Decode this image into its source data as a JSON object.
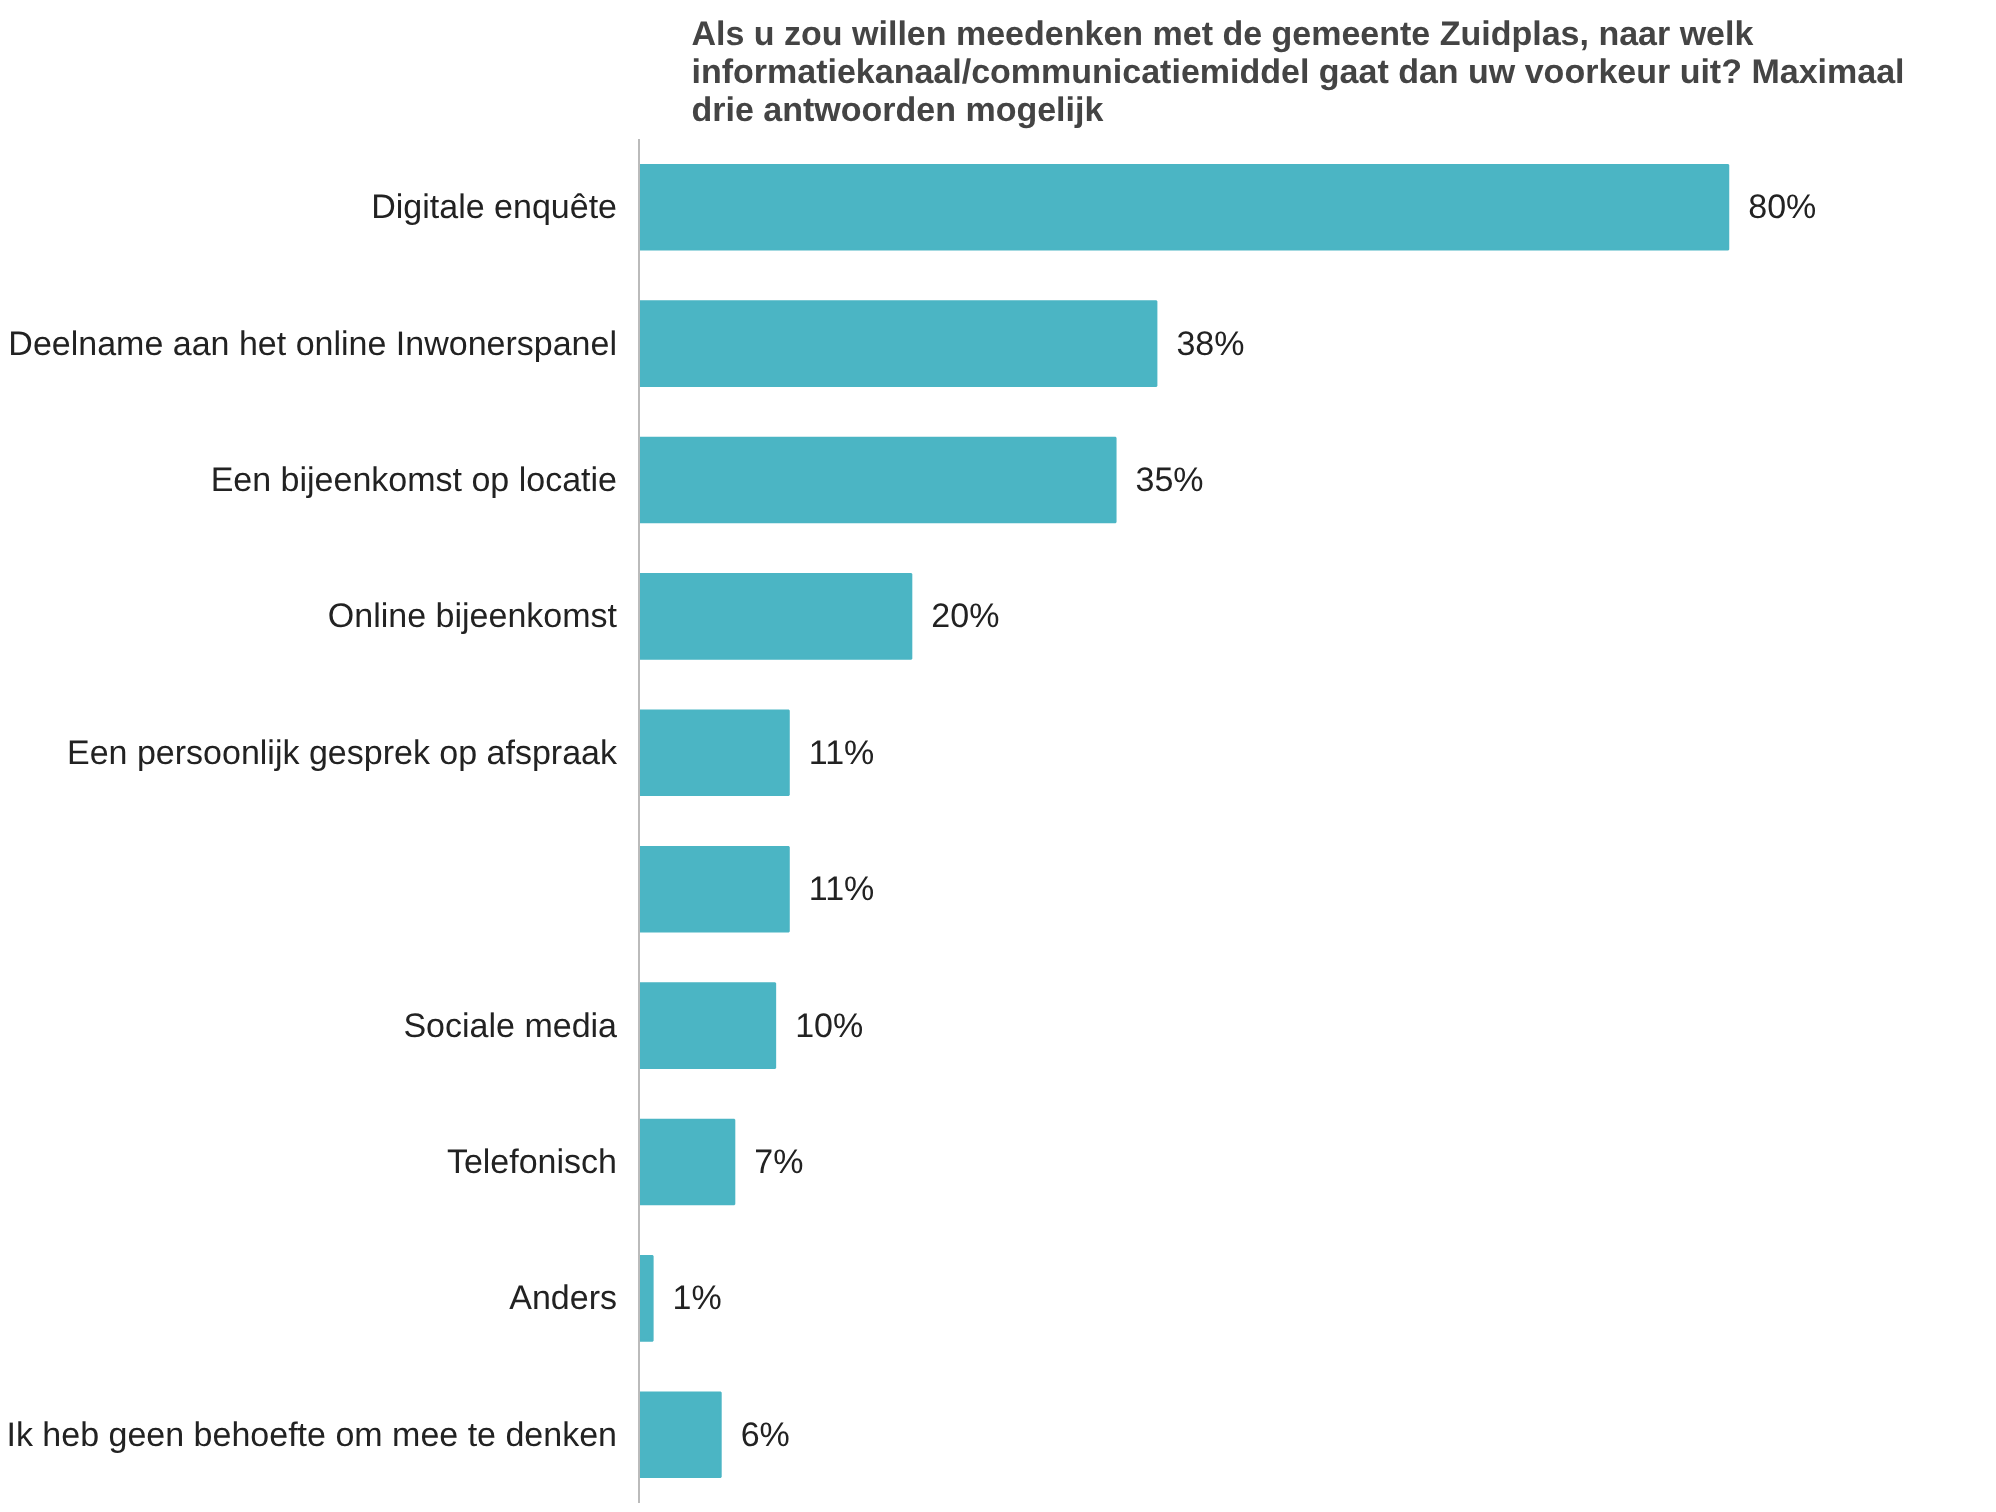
{
  "chart_data": {
    "type": "bar",
    "orientation": "horizontal",
    "title": "Als u zou willen meedenken met de gemeente Zuidplas, naar welk informatiekanaal/communicatiemiddel gaat dan uw voorkeur uit? Maximaal drie antwoorden mogelijk",
    "categories": [
      "Digitale enquête",
      "Deelname aan het online Inwonerspanel",
      "Een bijeenkomst op locatie",
      "Online bijeenkomst",
      "Een persoonlijk gesprek op afspraak",
      null,
      "Sociale media",
      "Telefonisch",
      "Anders",
      "Ik heb geen behoefte om mee te denken"
    ],
    "values": [
      80,
      38,
      35,
      20,
      11,
      11,
      10,
      7,
      1,
      6
    ],
    "value_labels": [
      "80%",
      "38%",
      "35%",
      "20%",
      "11%",
      "11%",
      "10%",
      "7%",
      "1%",
      "6%"
    ],
    "color": "#4bb5c4",
    "grid": false
  }
}
